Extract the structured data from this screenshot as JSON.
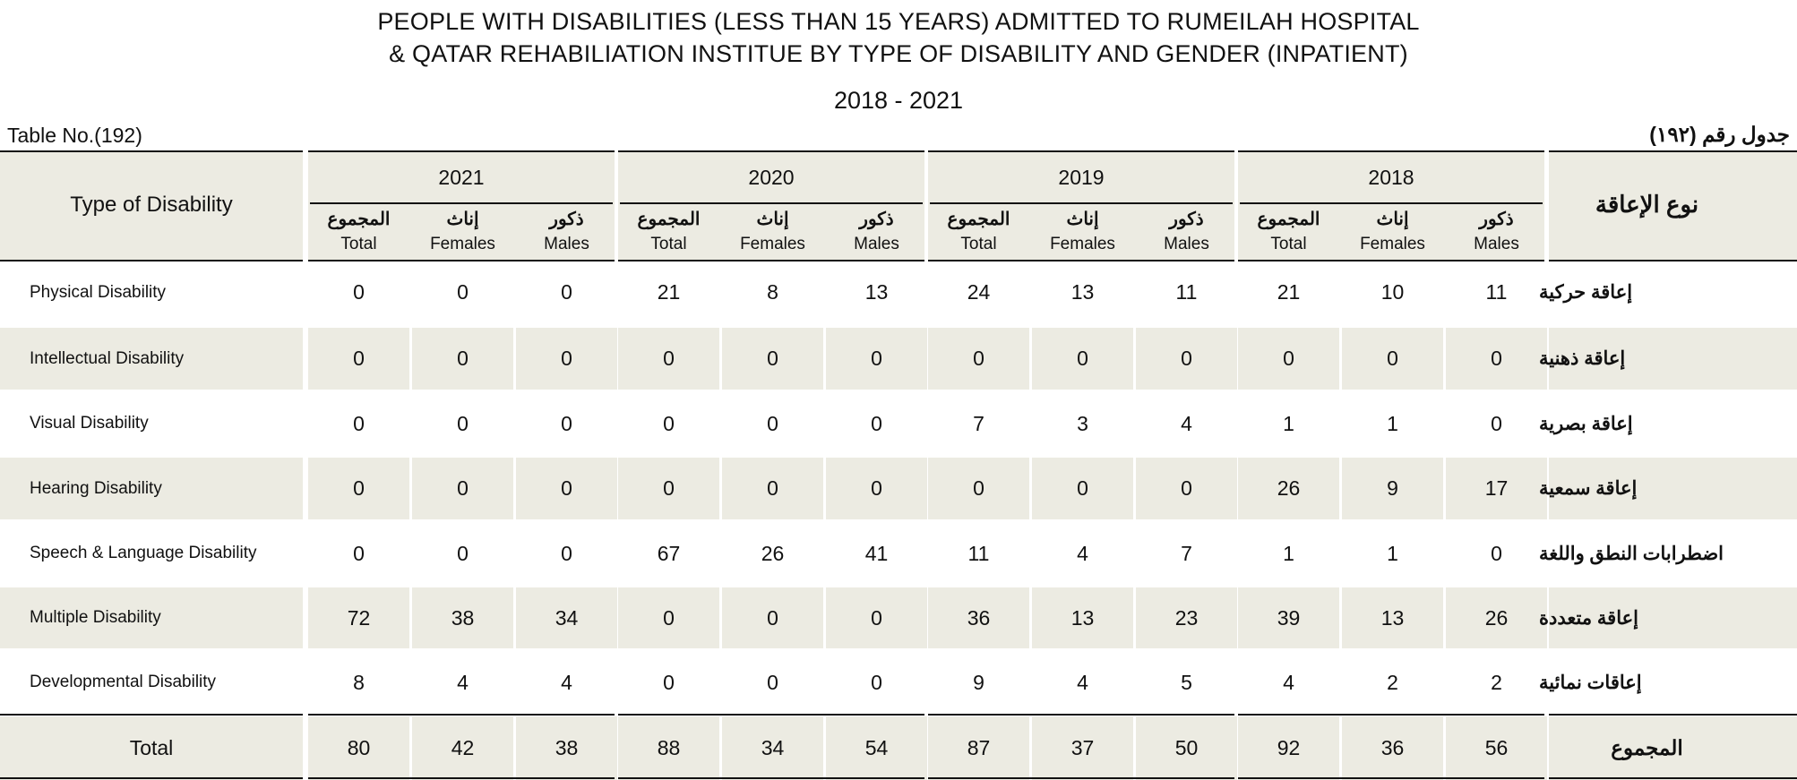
{
  "header": {
    "title_line1": "PEOPLE  WITH DISABILITIES (LESS THAN 15 YEARS) ADMITTED TO RUMEILAH HOSPITAL",
    "title_line2": "& QATAR REHABILIATION INSTITUE  BY TYPE OF DISABILITY AND GENDER (INPATIENT)",
    "years": "2018 - 2021",
    "table_no_en": "Table No.(192)",
    "table_no_ar": "جدول رقم  (١٩٢)"
  },
  "columns": {
    "type_en": "Type of Disability",
    "type_ar": "نوع الإعاقة",
    "years": [
      "2021",
      "2020",
      "2019",
      "2018"
    ],
    "sub": [
      {
        "ar": "المجموع",
        "en": "Total"
      },
      {
        "ar": "إناث",
        "en": "Females"
      },
      {
        "ar": "ذكور",
        "en": "Males"
      }
    ]
  },
  "rows": [
    {
      "en": "Physical Disability",
      "ar": "إعاقة حركية",
      "values": [
        "0",
        "0",
        "0",
        "21",
        "8",
        "13",
        "24",
        "13",
        "11",
        "21",
        "10",
        "11"
      ]
    },
    {
      "en": "Intellectual Disability",
      "ar": "إعاقة ذهنية",
      "values": [
        "0",
        "0",
        "0",
        "0",
        "0",
        "0",
        "0",
        "0",
        "0",
        "0",
        "0",
        "0"
      ]
    },
    {
      "en": "Visual Disability",
      "ar": "إعاقة بصرية",
      "values": [
        "0",
        "0",
        "0",
        "0",
        "0",
        "0",
        "7",
        "3",
        "4",
        "1",
        "1",
        "0"
      ]
    },
    {
      "en": "Hearing Disability",
      "ar": "إعاقة سمعية",
      "values": [
        "0",
        "0",
        "0",
        "0",
        "0",
        "0",
        "0",
        "0",
        "0",
        "26",
        "9",
        "17"
      ]
    },
    {
      "en": "Speech & Language Disability",
      "ar": "اضطرابات النطق واللغة",
      "values": [
        "0",
        "0",
        "0",
        "67",
        "26",
        "41",
        "11",
        "4",
        "7",
        "1",
        "1",
        "0"
      ]
    },
    {
      "en": "Multiple Disability",
      "ar": "إعاقة متعددة",
      "values": [
        "72",
        "38",
        "34",
        "0",
        "0",
        "0",
        "36",
        "13",
        "23",
        "39",
        "13",
        "26"
      ]
    },
    {
      "en": "Developmental Disability",
      "ar": "إعاقات نمائية",
      "values": [
        "8",
        "4",
        "4",
        "0",
        "0",
        "0",
        "9",
        "4",
        "5",
        "4",
        "2",
        "2"
      ]
    }
  ],
  "total": {
    "en": "Total",
    "ar": "المجموع",
    "values": [
      "80",
      "42",
      "38",
      "88",
      "34",
      "54",
      "87",
      "37",
      "50",
      "92",
      "36",
      "56"
    ]
  }
}
